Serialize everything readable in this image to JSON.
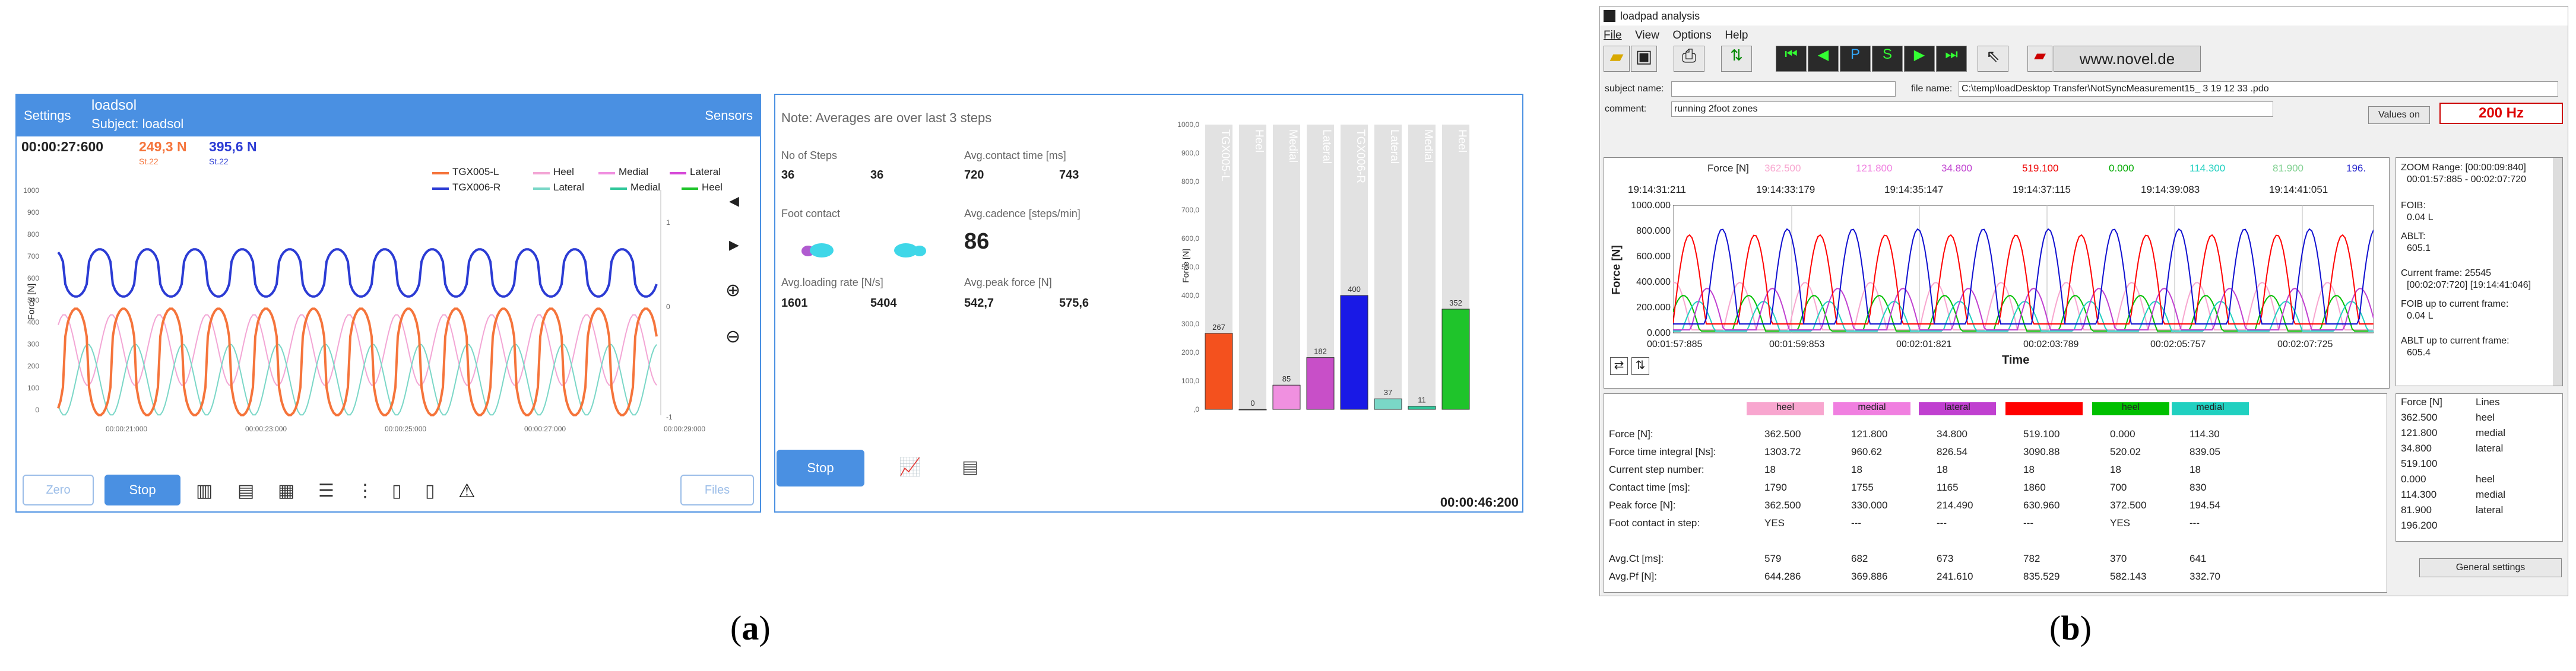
{
  "panel_a": {
    "header": {
      "settings": "Settings",
      "app_name": "loadsol",
      "subject": "Subject: loadsol",
      "sensors": "Sensors"
    },
    "time": "00:00:27:600",
    "left_force": "249,3 N",
    "left_steps": "St.22",
    "right_force": "395,6 N",
    "right_steps": "St.22",
    "legend": [
      "TGX005-L",
      "Heel",
      "Medial",
      "Lateral",
      "TGX006-R",
      "Lateral",
      "Medial",
      "Heel"
    ],
    "y_axis_label": "Force [N]",
    "y_ticks": [
      "1000",
      "900",
      "800",
      "700",
      "600",
      "500",
      "400",
      "300",
      "200",
      "100",
      "0"
    ],
    "y2_ticks": [
      "1",
      "0",
      "-1"
    ],
    "x_ticks": [
      "00:00:21:000",
      "00:00:23:000",
      "00:00:25:000",
      "00:00:27:000",
      "00:00:29:000"
    ],
    "buttons": {
      "zero": "Zero",
      "stop": "Stop",
      "files": "Files"
    },
    "colors": {
      "left": "#f5743b",
      "right": "#2b3bd4",
      "pink": "#f3a6d5",
      "magenta": "#d64ad8",
      "teal": "#5fd6b6"
    }
  },
  "panel_b": {
    "note": "Note: Averages are over last 3 steps",
    "steps_label": "No of Steps",
    "steps_l": "36",
    "steps_r": "36",
    "contact_label": "Avg.contact time [ms]",
    "contact_l": "720",
    "contact_r": "743",
    "foot_contact_label": "Foot contact",
    "cadence_label": "Avg.cadence [steps/min]",
    "cadence": "86",
    "loading_label": "Avg.loading rate [N/s]",
    "loading_l": "1601",
    "loading_r": "5404",
    "peak_label": "Avg.peak force [N]",
    "peak_l": "542,7",
    "peak_r": "575,6",
    "stop": "Stop",
    "time": "00:00:46:200"
  },
  "chart_data": {
    "type": "bar",
    "categories": [
      "TGX005-L",
      "Heel",
      "Medial",
      "Lateral",
      "TGX006-R",
      "Lateral",
      "Medial",
      "Heel"
    ],
    "values": [
      267,
      0,
      85,
      182,
      400,
      37,
      11,
      352
    ],
    "ylabel": "Force [N]",
    "ylim": [
      0,
      1000
    ],
    "y_ticks": [
      "1000,0",
      "900,0",
      "800,0",
      "700,0",
      "600,0",
      "500,0",
      "400,0",
      "300,0",
      "200,0",
      "100,0",
      ",0"
    ],
    "colors": [
      "#f4511e",
      "#f8b4d9",
      "#f090e0",
      "#c84fc8",
      "#1919e6",
      "#7ad7c7",
      "#30c79a",
      "#1fc42b"
    ]
  },
  "panel_c": {
    "title": "loadpad analysis",
    "menu": [
      "File",
      "View",
      "Options",
      "Help"
    ],
    "novel": "www.novel.de",
    "subject_label": "subject name:",
    "file_label": "file name:",
    "file_value": "C:\\temp\\loadDesktop Transfer\\NotSyncMeasurement15_ 3 19 12 33 .pdo",
    "comment_label": "comment:",
    "comment_value": "running 2foot zones",
    "values_on": "Values on",
    "hz": "200 Hz",
    "force_row": {
      "label": "Force [N]",
      "values": [
        "362.500",
        "121.800",
        "34.800",
        "519.100",
        "0.000",
        "114.300",
        "81.900",
        "196."
      ]
    },
    "top_times": [
      "19:14:31:211",
      "19:14:33:179",
      "19:14:35:147",
      "19:14:37:115",
      "19:14:39:083",
      "19:14:41:051"
    ],
    "y_label": "Force [N]",
    "y_ticks": [
      "1000.000",
      "800.000",
      "600.000",
      "400.000",
      "200.000",
      "0.000"
    ],
    "x_ticks": [
      "00:01:57:885",
      "00:01:59:853",
      "00:02:01:821",
      "00:02:03:789",
      "00:02:05:757",
      "00:02:07:725"
    ],
    "x_label": "Time",
    "side": {
      "zoom": "ZOOM Range: [00:00:09:840]",
      "zoom_range": "00:01:57:885 - 00:02:07:720",
      "foib_label": "FOIB:",
      "foib": "0.04 L",
      "ablt_label": "ABLT:",
      "ablt": "605.1",
      "current": "Current frame:  25545",
      "current2": "[00:02:07:720]  [19:14:41:046]",
      "foib_up": "FOIB up to current frame:",
      "foib_up_val": "0.04 L",
      "ablt_up": "ABLT up to current frame:",
      "ablt_up_val": "605.4"
    },
    "side_table": {
      "headers": [
        "Force [N]",
        "Lines"
      ],
      "rows": [
        [
          "362.500",
          "heel"
        ],
        [
          "121.800",
          "medial"
        ],
        [
          "34.800",
          "lateral"
        ],
        [
          "519.100",
          ""
        ],
        [
          "0.000",
          "heel"
        ],
        [
          "114.300",
          "medial"
        ],
        [
          "81.900",
          "lateral"
        ],
        [
          "196.200",
          ""
        ]
      ]
    },
    "general": "General settings",
    "table": {
      "headers": [
        "heel",
        "medial",
        "lateral",
        "",
        "heel",
        "medial"
      ],
      "header_colors": [
        "#f8a6cf",
        "#f07fe0",
        "#c040d0",
        "#ff0000",
        "#00c000",
        "#20d0c0"
      ],
      "rows": [
        {
          "label": "Force [N]:",
          "values": [
            "362.500",
            "121.800",
            "34.800",
            "519.100",
            "0.000",
            "114.30"
          ]
        },
        {
          "label": "Force time integral [Ns]:",
          "values": [
            "1303.72",
            "960.62",
            "826.54",
            "3090.88",
            "520.02",
            "839.05"
          ]
        },
        {
          "label": "Current step number:",
          "values": [
            "18",
            "18",
            "18",
            "18",
            "18",
            "18"
          ]
        },
        {
          "label": "Contact time [ms]:",
          "values": [
            "1790",
            "1755",
            "1165",
            "1860",
            "700",
            "830"
          ]
        },
        {
          "label": "Peak force [N]:",
          "values": [
            "362.500",
            "330.000",
            "214.490",
            "630.960",
            "372.500",
            "194.54"
          ]
        },
        {
          "label": "Foot contact in step:",
          "values": [
            "YES",
            "---",
            "---",
            "---",
            "YES",
            "---"
          ]
        },
        {
          "label": "",
          "values": [
            "",
            "",
            "",
            "",
            "",
            ""
          ]
        },
        {
          "label": "Avg.Ct [ms]:",
          "values": [
            "579",
            "682",
            "673",
            "782",
            "370",
            "641"
          ]
        },
        {
          "label": "Avg.Pf [N]:",
          "values": [
            "644.286",
            "369.886",
            "241.610",
            "835.529",
            "582.143",
            "332.70"
          ]
        }
      ]
    }
  },
  "captions": {
    "a_open": "(",
    "a_letter": "a",
    "a_close": ")",
    "b_open": "(",
    "b_letter": "b",
    "b_close": ")"
  }
}
